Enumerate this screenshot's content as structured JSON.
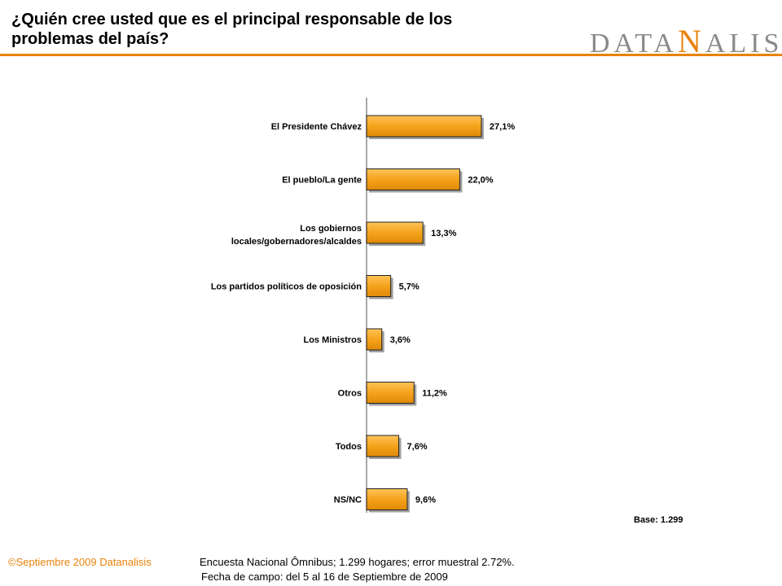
{
  "header": {
    "title_line1": "¿Quién cree usted que es el principal responsable de los",
    "title_line2": "problemas del país?",
    "logo_text": "DATANALISIS",
    "accent_color": "#e8830a"
  },
  "chart_data": {
    "type": "bar",
    "orientation": "horizontal",
    "categories": [
      "El Presidente Chávez",
      "El pueblo/La gente",
      "Los gobiernos locales/gobernadores/alcaldes",
      "Los partidos políticos de oposición",
      "Los Ministros",
      "Otros",
      "Todos",
      "NS/NC"
    ],
    "category_lines": [
      [
        "El Presidente Chávez"
      ],
      [
        "El pueblo/La gente"
      ],
      [
        "Los gobiernos",
        "locales/gobernadores/alcaldes"
      ],
      [
        "Los partidos políticos de oposición"
      ],
      [
        "Los Ministros"
      ],
      [
        "Otros"
      ],
      [
        "Todos"
      ],
      [
        "NS/NC"
      ]
    ],
    "values": [
      27.1,
      22.0,
      13.3,
      5.7,
      3.6,
      11.2,
      7.6,
      9.6
    ],
    "value_labels": [
      "27,1%",
      "22,0%",
      "13,3%",
      "5,7%",
      "3,6%",
      "11,2%",
      "7,6%",
      "9,6%"
    ],
    "unit": "%",
    "xlim": [
      0,
      100
    ],
    "bar_color": "#f5a21b",
    "grid": false,
    "legend": false
  },
  "base_text": "Base: 1.299",
  "footer": {
    "copyright": "©Septiembre 2009  Datanalisis",
    "note_line1": "Encuesta Nacional Ômnibus; 1.299 hogares; error muestral 2.72%.",
    "note_line2": "Fecha de campo: del 5 al 16 de Septiembre de 2009"
  }
}
